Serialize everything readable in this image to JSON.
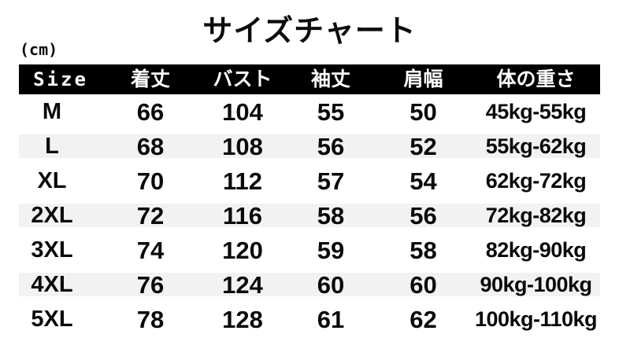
{
  "title": "サイズチャート",
  "unit_label": "(cm)",
  "chart_data": {
    "type": "table",
    "title": "サイズチャート",
    "unit": "cm",
    "columns": [
      "Size",
      "着丈",
      "バスト",
      "袖丈",
      "肩幅",
      "体の重さ"
    ],
    "rows": [
      [
        "M",
        66,
        104,
        55,
        50,
        "45kg-55kg"
      ],
      [
        "L",
        68,
        108,
        56,
        52,
        "55kg-62kg"
      ],
      [
        "XL",
        70,
        112,
        57,
        54,
        "62kg-72kg"
      ],
      [
        "2XL",
        72,
        116,
        58,
        56,
        "72kg-82kg"
      ],
      [
        "3XL",
        74,
        120,
        59,
        58,
        "82kg-90kg"
      ],
      [
        "4XL",
        76,
        124,
        60,
        60,
        "90kg-100kg"
      ],
      [
        "5XL",
        78,
        128,
        61,
        62,
        "100kg-110kg"
      ]
    ]
  },
  "colors": {
    "background": "#ffffff",
    "header_bg": "#000000",
    "header_text": "#ffffff",
    "stripe": "#f2f2f2",
    "text": "#0a0a0a"
  }
}
